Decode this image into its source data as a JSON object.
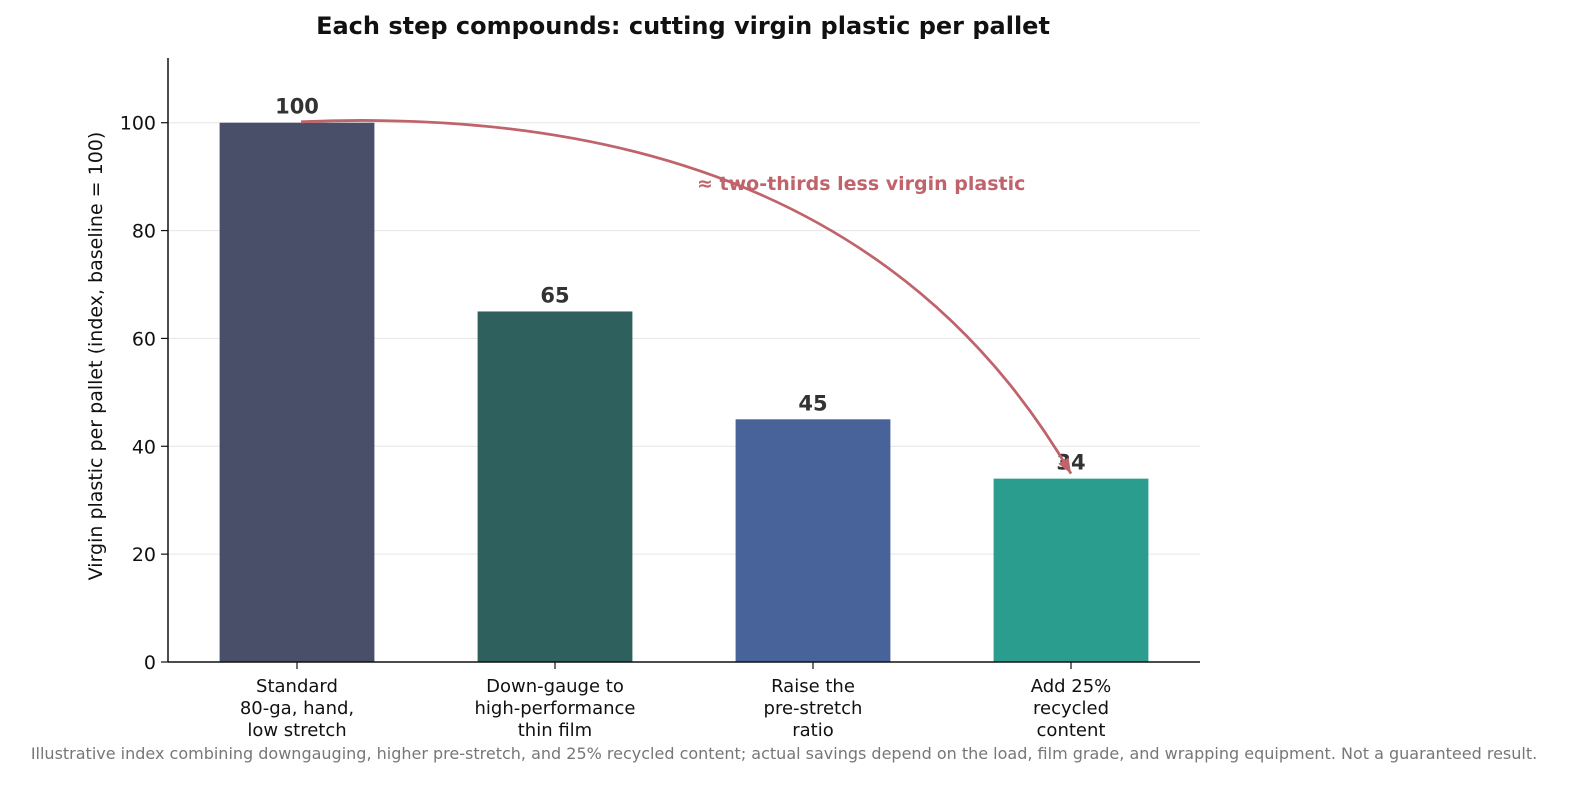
{
  "chart_data": {
    "type": "bar",
    "title": "Each step compounds: cutting virgin plastic per pallet",
    "ylabel": "Virgin plastic per pallet (index, baseline = 100)",
    "xlabel": "",
    "ylim": [
      0,
      112
    ],
    "yticks": [
      0,
      20,
      40,
      60,
      80,
      100
    ],
    "grid": "y",
    "categories": [
      [
        "Standard",
        "80-ga, hand,",
        "low stretch"
      ],
      [
        "Down-gauge to",
        "high-performance",
        "thin film"
      ],
      [
        "Raise the",
        "pre-stretch",
        "ratio"
      ],
      [
        "Add 25%",
        "recycled",
        "content"
      ]
    ],
    "values": [
      100,
      65,
      45,
      34
    ],
    "colors": [
      "#4a4f69",
      "#2e615e",
      "#48629a",
      "#2a9d8f"
    ],
    "annotation": {
      "text": "≈ two-thirds less virgin plastic",
      "color": "#c0636b",
      "from_category": 0,
      "to_category": 3
    },
    "footnote": "Illustrative index combining downgauging, higher pre-stretch, and 25% recycled content; actual savings depend on the load, film grade, and wrapping equipment. Not a guaranteed result."
  }
}
